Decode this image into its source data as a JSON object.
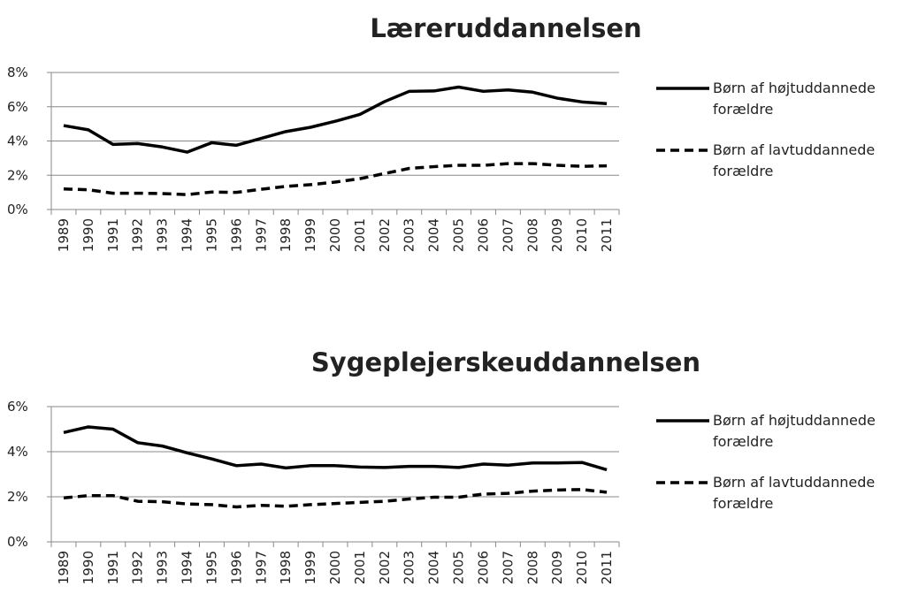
{
  "chart_data": [
    {
      "type": "line",
      "title": "Læreruddannelsen",
      "categories": [
        "1989",
        "1990",
        "1991",
        "1992",
        "1993",
        "1994",
        "1995",
        "1996",
        "1997",
        "1998",
        "1999",
        "2000",
        "2001",
        "2002",
        "2003",
        "2004",
        "2005",
        "2006",
        "2007",
        "2008",
        "2009",
        "2010",
        "2011"
      ],
      "series": [
        {
          "name": "Børn af højtuddannede forældre",
          "color": "#000000",
          "dashed": false,
          "values": [
            4.9,
            4.65,
            3.8,
            3.85,
            3.65,
            3.35,
            3.9,
            3.75,
            4.15,
            4.55,
            4.8,
            5.15,
            5.55,
            6.3,
            6.9,
            6.92,
            7.15,
            6.9,
            6.98,
            6.85,
            6.5,
            6.28,
            6.18
          ]
        },
        {
          "name": "Børn af lavtuddannede forældre",
          "color": "#000000",
          "dashed": true,
          "values": [
            1.2,
            1.15,
            0.95,
            0.95,
            0.93,
            0.87,
            1.02,
            1.0,
            1.18,
            1.35,
            1.45,
            1.6,
            1.8,
            2.1,
            2.4,
            2.5,
            2.58,
            2.58,
            2.68,
            2.68,
            2.58,
            2.52,
            2.55
          ]
        }
      ],
      "ylim": [
        0,
        8
      ],
      "yticks": [
        {
          "value": 0,
          "label": "0%"
        },
        {
          "value": 2,
          "label": "2%"
        },
        {
          "value": 4,
          "label": "4%"
        },
        {
          "value": 6,
          "label": "6%"
        },
        {
          "value": 8,
          "label": "8%"
        }
      ],
      "grid": true,
      "legend": "right"
    },
    {
      "type": "line",
      "title": "Sygeplejerskeuddannelsen",
      "categories": [
        "1989",
        "1990",
        "1991",
        "1992",
        "1993",
        "1994",
        "1995",
        "1996",
        "1997",
        "1998",
        "1999",
        "2000",
        "2001",
        "2002",
        "2003",
        "2004",
        "2005",
        "2006",
        "2007",
        "2008",
        "2009",
        "2010",
        "2011"
      ],
      "series": [
        {
          "name": "Børn af højtuddannede forældre",
          "color": "#000000",
          "dashed": false,
          "values": [
            4.85,
            5.1,
            5.0,
            4.4,
            4.25,
            3.95,
            3.68,
            3.38,
            3.45,
            3.28,
            3.38,
            3.38,
            3.32,
            3.3,
            3.35,
            3.35,
            3.3,
            3.45,
            3.4,
            3.5,
            3.5,
            3.52,
            3.2
          ]
        },
        {
          "name": "Børn af lavtuddannede forældre",
          "color": "#000000",
          "dashed": true,
          "values": [
            1.95,
            2.05,
            2.05,
            1.8,
            1.78,
            1.68,
            1.65,
            1.55,
            1.62,
            1.58,
            1.65,
            1.7,
            1.75,
            1.8,
            1.9,
            1.98,
            1.98,
            2.12,
            2.15,
            2.25,
            2.3,
            2.32,
            2.2
          ]
        }
      ],
      "ylim": [
        0,
        6
      ],
      "yticks": [
        {
          "value": 0,
          "label": "0%"
        },
        {
          "value": 2,
          "label": "2%"
        },
        {
          "value": 4,
          "label": "4%"
        },
        {
          "value": 6,
          "label": "6%"
        }
      ],
      "grid": true,
      "legend": "right"
    }
  ]
}
